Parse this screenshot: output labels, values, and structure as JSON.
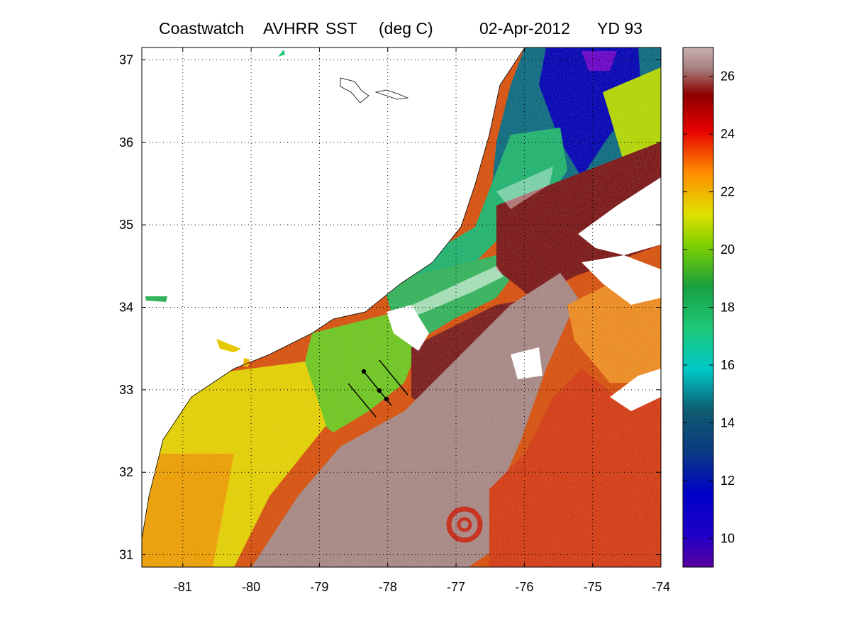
{
  "header": {
    "product": "Coastwatch",
    "sensor": "AVHRR",
    "variable": "SST",
    "units": "(deg C)",
    "date": "02-Apr-2012",
    "year_day": "YD 93"
  },
  "map": {
    "lon_ticks": [
      "-81",
      "-80",
      "-79",
      "-78",
      "-77",
      "-76",
      "-75",
      "-74"
    ],
    "lat_ticks": [
      "37",
      "36",
      "35",
      "34",
      "33",
      "32",
      "31"
    ],
    "lon_range": [
      -81.6,
      -74.0
    ],
    "lat_range": [
      30.85,
      37.15
    ],
    "grid": "dotted",
    "transect_lines": 3
  },
  "colorbar": {
    "ticks": [
      "26",
      "24",
      "22",
      "20",
      "18",
      "16",
      "14",
      "12",
      "10"
    ],
    "range": [
      9,
      27
    ],
    "colors": [
      "#5a00a0",
      "#0000c8",
      "#0e5a6e",
      "#00c8c8",
      "#1ec83c",
      "#c8e000",
      "#ff8c00",
      "#e60000",
      "#8c0000",
      "#b9a0a0"
    ]
  }
}
